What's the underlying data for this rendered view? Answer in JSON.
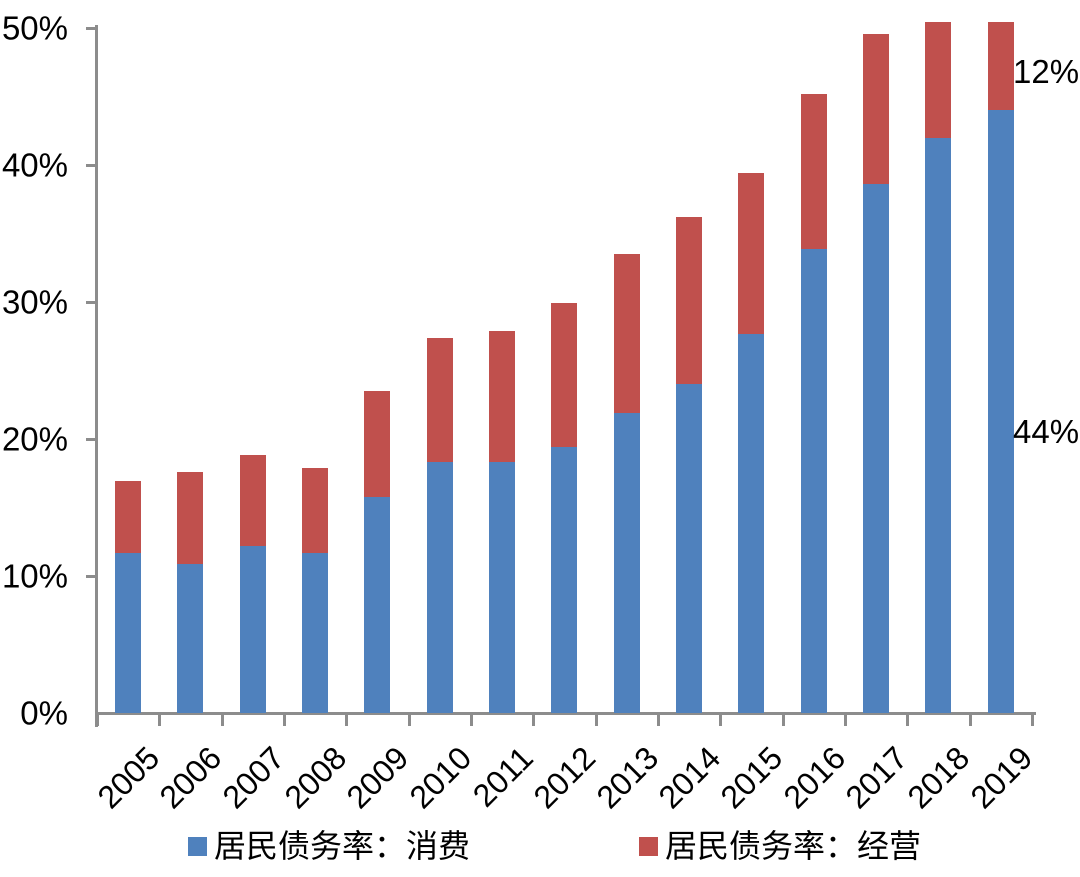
{
  "chart_data": {
    "type": "bar",
    "stacked": true,
    "title": "",
    "xlabel": "",
    "ylabel": "",
    "categories": [
      "2005",
      "2006",
      "2007",
      "2008",
      "2009",
      "2010",
      "2011",
      "2012",
      "2013",
      "2014",
      "2015",
      "2016",
      "2017",
      "2018",
      "2019"
    ],
    "series": [
      {
        "name": "居民债务率：消费",
        "color": "#4F81BD",
        "values": [
          11.7,
          10.9,
          12.2,
          11.7,
          15.8,
          18.3,
          18.3,
          19.4,
          21.9,
          24.0,
          27.7,
          33.9,
          38.6,
          42.0,
          44.0
        ]
      },
      {
        "name": "居民债务率：经营",
        "color": "#C0504D",
        "values": [
          5.2,
          6.7,
          6.6,
          6.2,
          7.7,
          9.1,
          9.6,
          10.5,
          11.6,
          12.2,
          11.7,
          11.3,
          11.0,
          12.0,
          12.0
        ]
      }
    ],
    "ylim": [
      0,
      50
    ],
    "y_tick_labels": [
      "0%",
      "10%",
      "20%",
      "30%",
      "40%",
      "50%"
    ],
    "grid": false,
    "legend_position": "bottom",
    "bars_clipped_at_ymax": [
      "2018",
      "2019"
    ],
    "annotations": [
      {
        "text": "12%",
        "target": "2019 经营 segment"
      },
      {
        "text": "44%",
        "target": "2019 消费 segment"
      }
    ]
  }
}
